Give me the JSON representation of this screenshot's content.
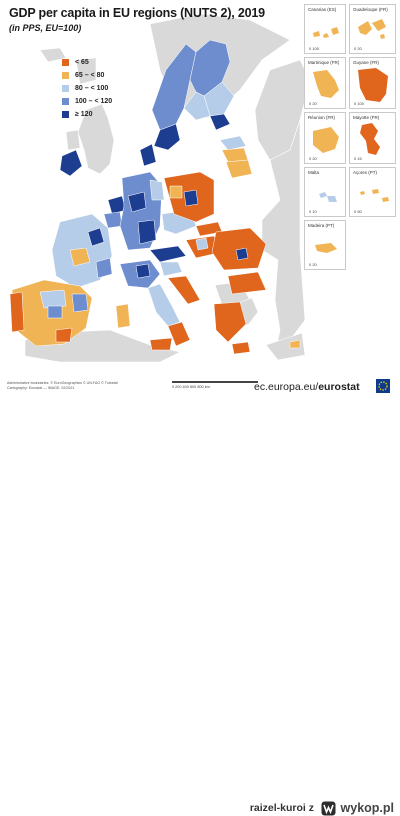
{
  "map": {
    "title": "GDP per capita in EU regions (NUTS 2), 2019",
    "subtitle": "(in PPS, EU=100)",
    "legend": [
      {
        "label": "< 65",
        "color": "#e0661e"
      },
      {
        "label": "65 – < 80",
        "color": "#f0b455"
      },
      {
        "label": "80 – < 100",
        "color": "#b6cdea"
      },
      {
        "label": "100 – < 120",
        "color": "#6d8dcf"
      },
      {
        "label": "≥ 120",
        "color": "#1d3d91"
      }
    ],
    "colors": {
      "sea": "#ffffff",
      "non_eu": "#d9d9d9",
      "border": "#ffffff"
    },
    "insets": [
      {
        "name": "canarias",
        "title": "Canarias (ES)",
        "scale": "0  100"
      },
      {
        "name": "guadeloupe",
        "title": "Guadeloupe (FR)",
        "scale": "0   20"
      },
      {
        "name": "martinique",
        "title": "Martinique (FR)",
        "scale": "0  20"
      },
      {
        "name": "guyane",
        "title": "Guyane (FR)",
        "scale": "0  100"
      },
      {
        "name": "reunion",
        "title": "Réunion (FR)",
        "scale": "0  20"
      },
      {
        "name": "mayotte",
        "title": "Mayotte (FR)",
        "scale": "0   15"
      },
      {
        "name": "malta",
        "title": "Malta",
        "scale": "0  10"
      },
      {
        "name": "acores",
        "title": "Açores (PT)",
        "scale": "0   50"
      },
      {
        "name": "madeira",
        "title": "Madeira (PT)",
        "scale": "0  20"
      }
    ],
    "footnotes": [
      "Administrative boundaries: © EuroGeographics © UN-FAO © Turkstat",
      "Cartography: Eurostat — IMAGE, 02/2021"
    ],
    "scale_bar": "0    200   400   600   800 km",
    "site_prefix": "ec.europa.eu/",
    "site_suffix": "eurostat"
  },
  "watermark": {
    "user": "raizel-kuroi z",
    "brand": "wykop.pl"
  }
}
